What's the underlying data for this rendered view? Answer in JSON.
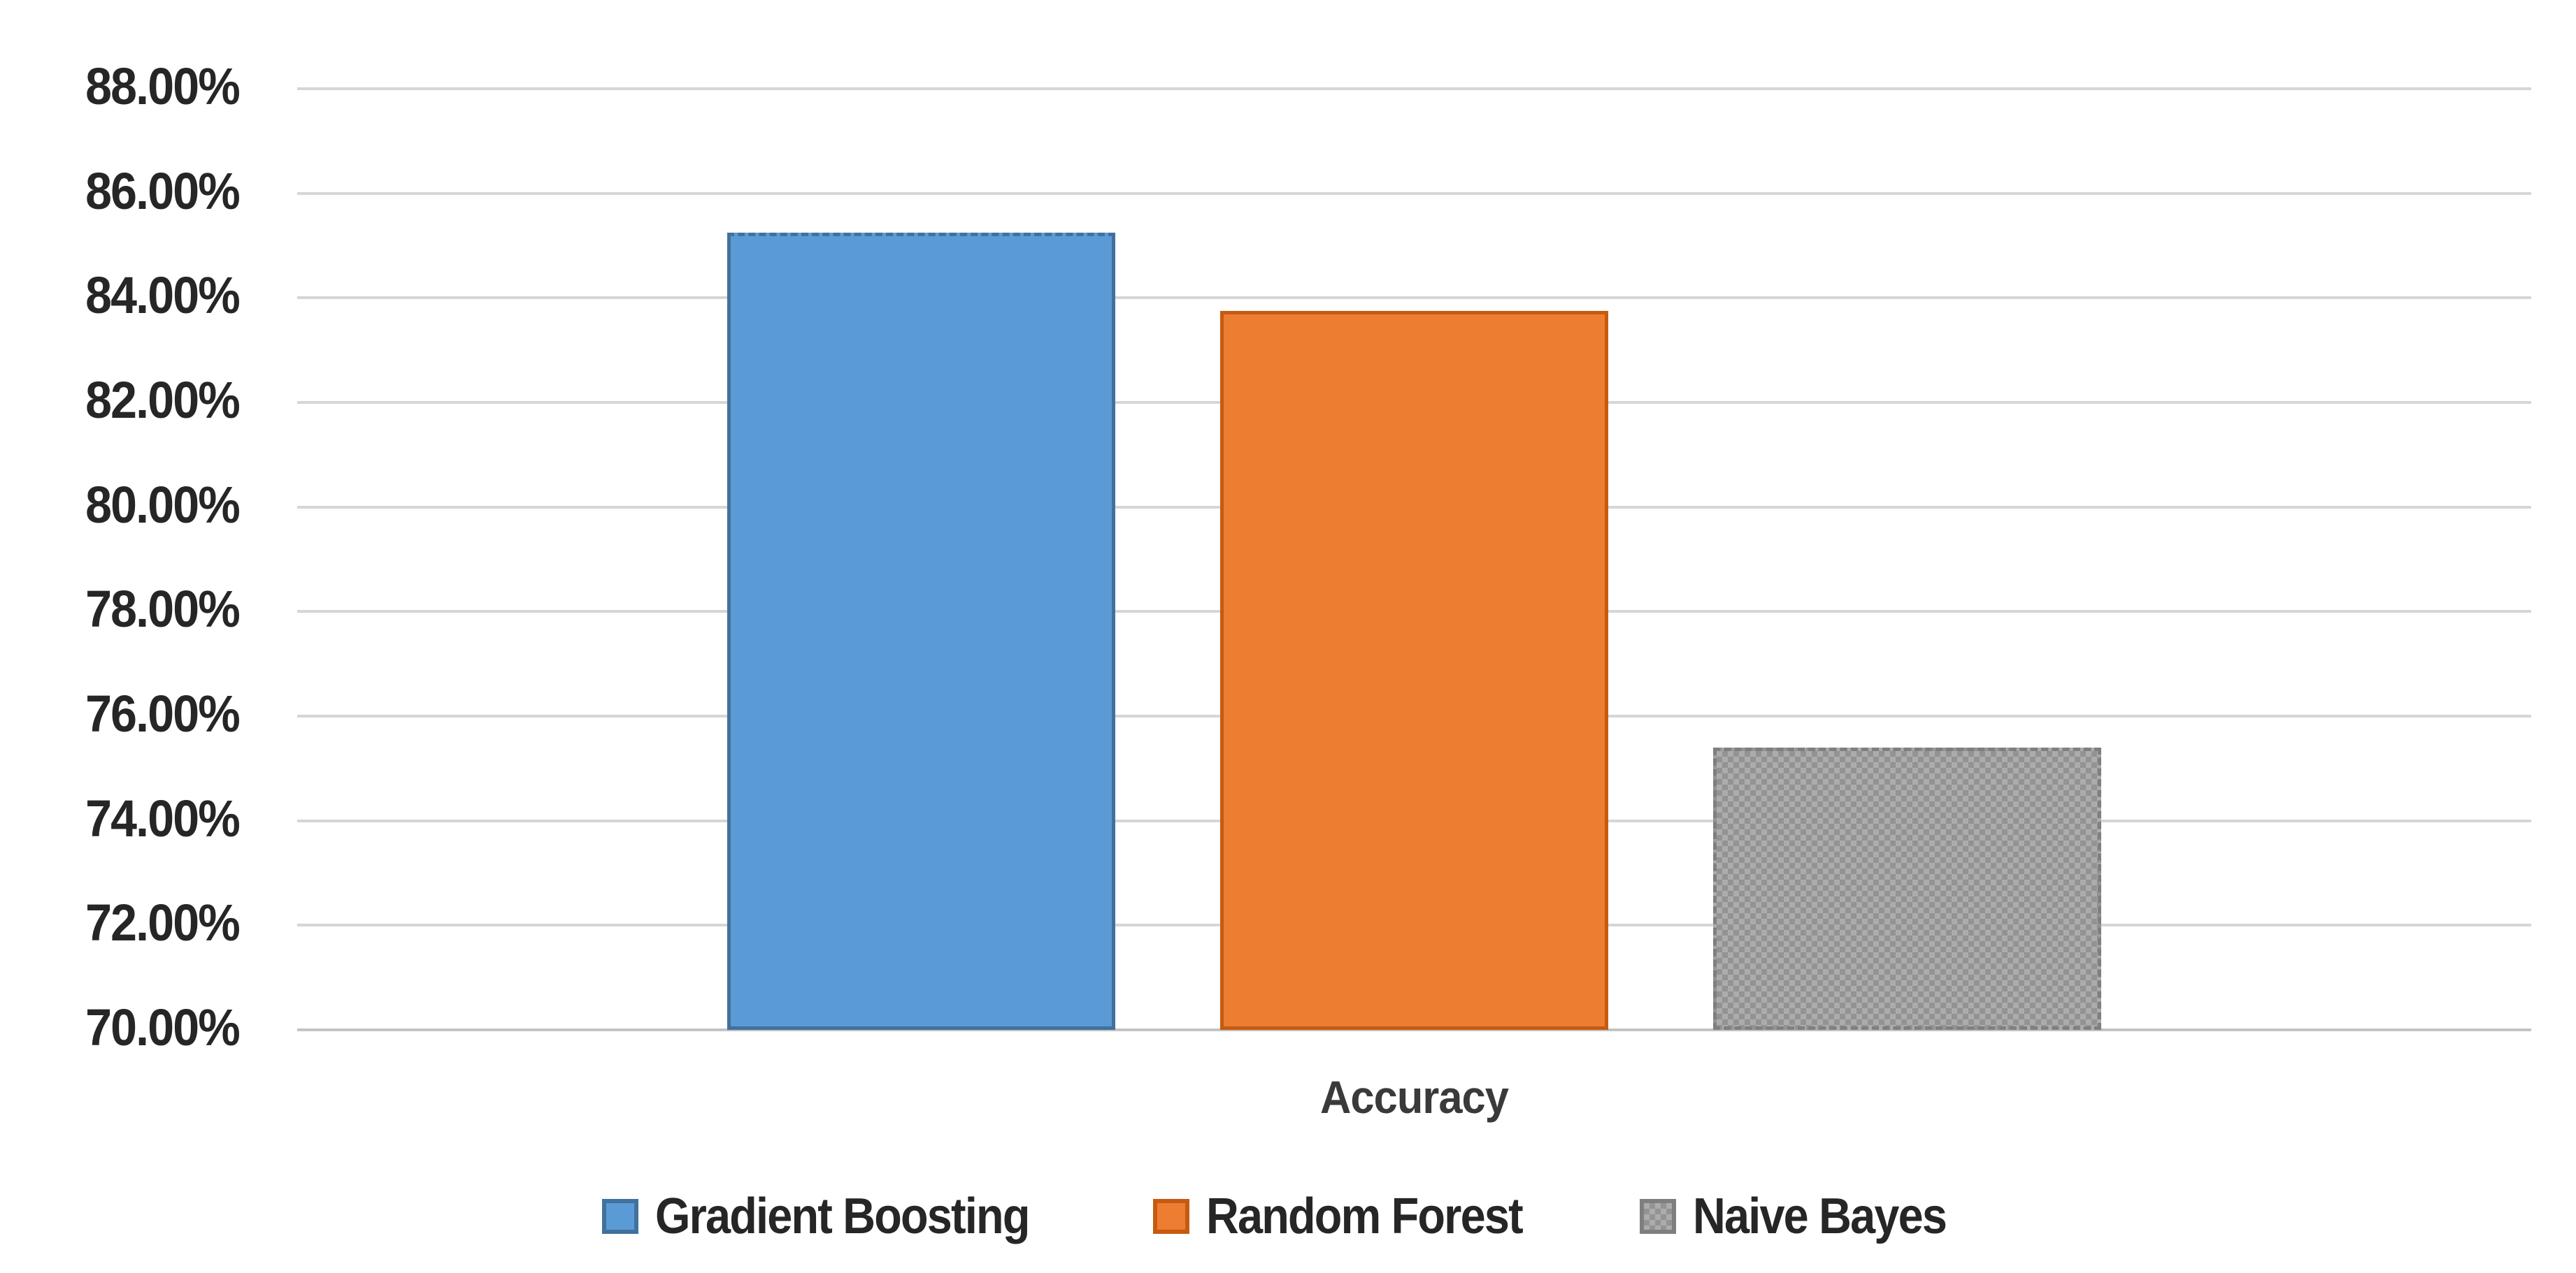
{
  "chart_data": {
    "type": "bar",
    "title": "",
    "categories": [
      "Accuracy"
    ],
    "series": [
      {
        "name": "Gradient Boosting",
        "value": 85.25,
        "color": "#5b9bd5",
        "border_color": "#41719c",
        "pattern": "solid",
        "border_style": "dashed-top"
      },
      {
        "name": "Random Forest",
        "value": 83.75,
        "color": "#ed7d31",
        "border_color": "#c55a11",
        "pattern": "solid",
        "border_style": "solid"
      },
      {
        "name": "Naive Bayes",
        "value": 75.4,
        "color": "#acacac",
        "border_color": "#7f7f7f",
        "pattern": "checker",
        "border_style": "dashed"
      }
    ],
    "xlabel": "Accuracy",
    "ylabel": "",
    "ylim": [
      70,
      88
    ],
    "ytick_step": 2,
    "ytick_labels": [
      "88.00%",
      "86.00%",
      "84.00%",
      "82.00%",
      "80.00%",
      "78.00%",
      "76.00%",
      "74.00%",
      "72.00%",
      "70.00%"
    ],
    "grid": true,
    "legend_position": "bottom",
    "legend": [
      "Gradient Boosting",
      "Random Forest",
      "Naive Bayes"
    ],
    "colors": {
      "gridline": "#d6d6d6",
      "axis_line": "#c3c3c3",
      "tick_text": "#262626",
      "label_text": "#3a3a3a",
      "background": "#ffffff"
    }
  }
}
